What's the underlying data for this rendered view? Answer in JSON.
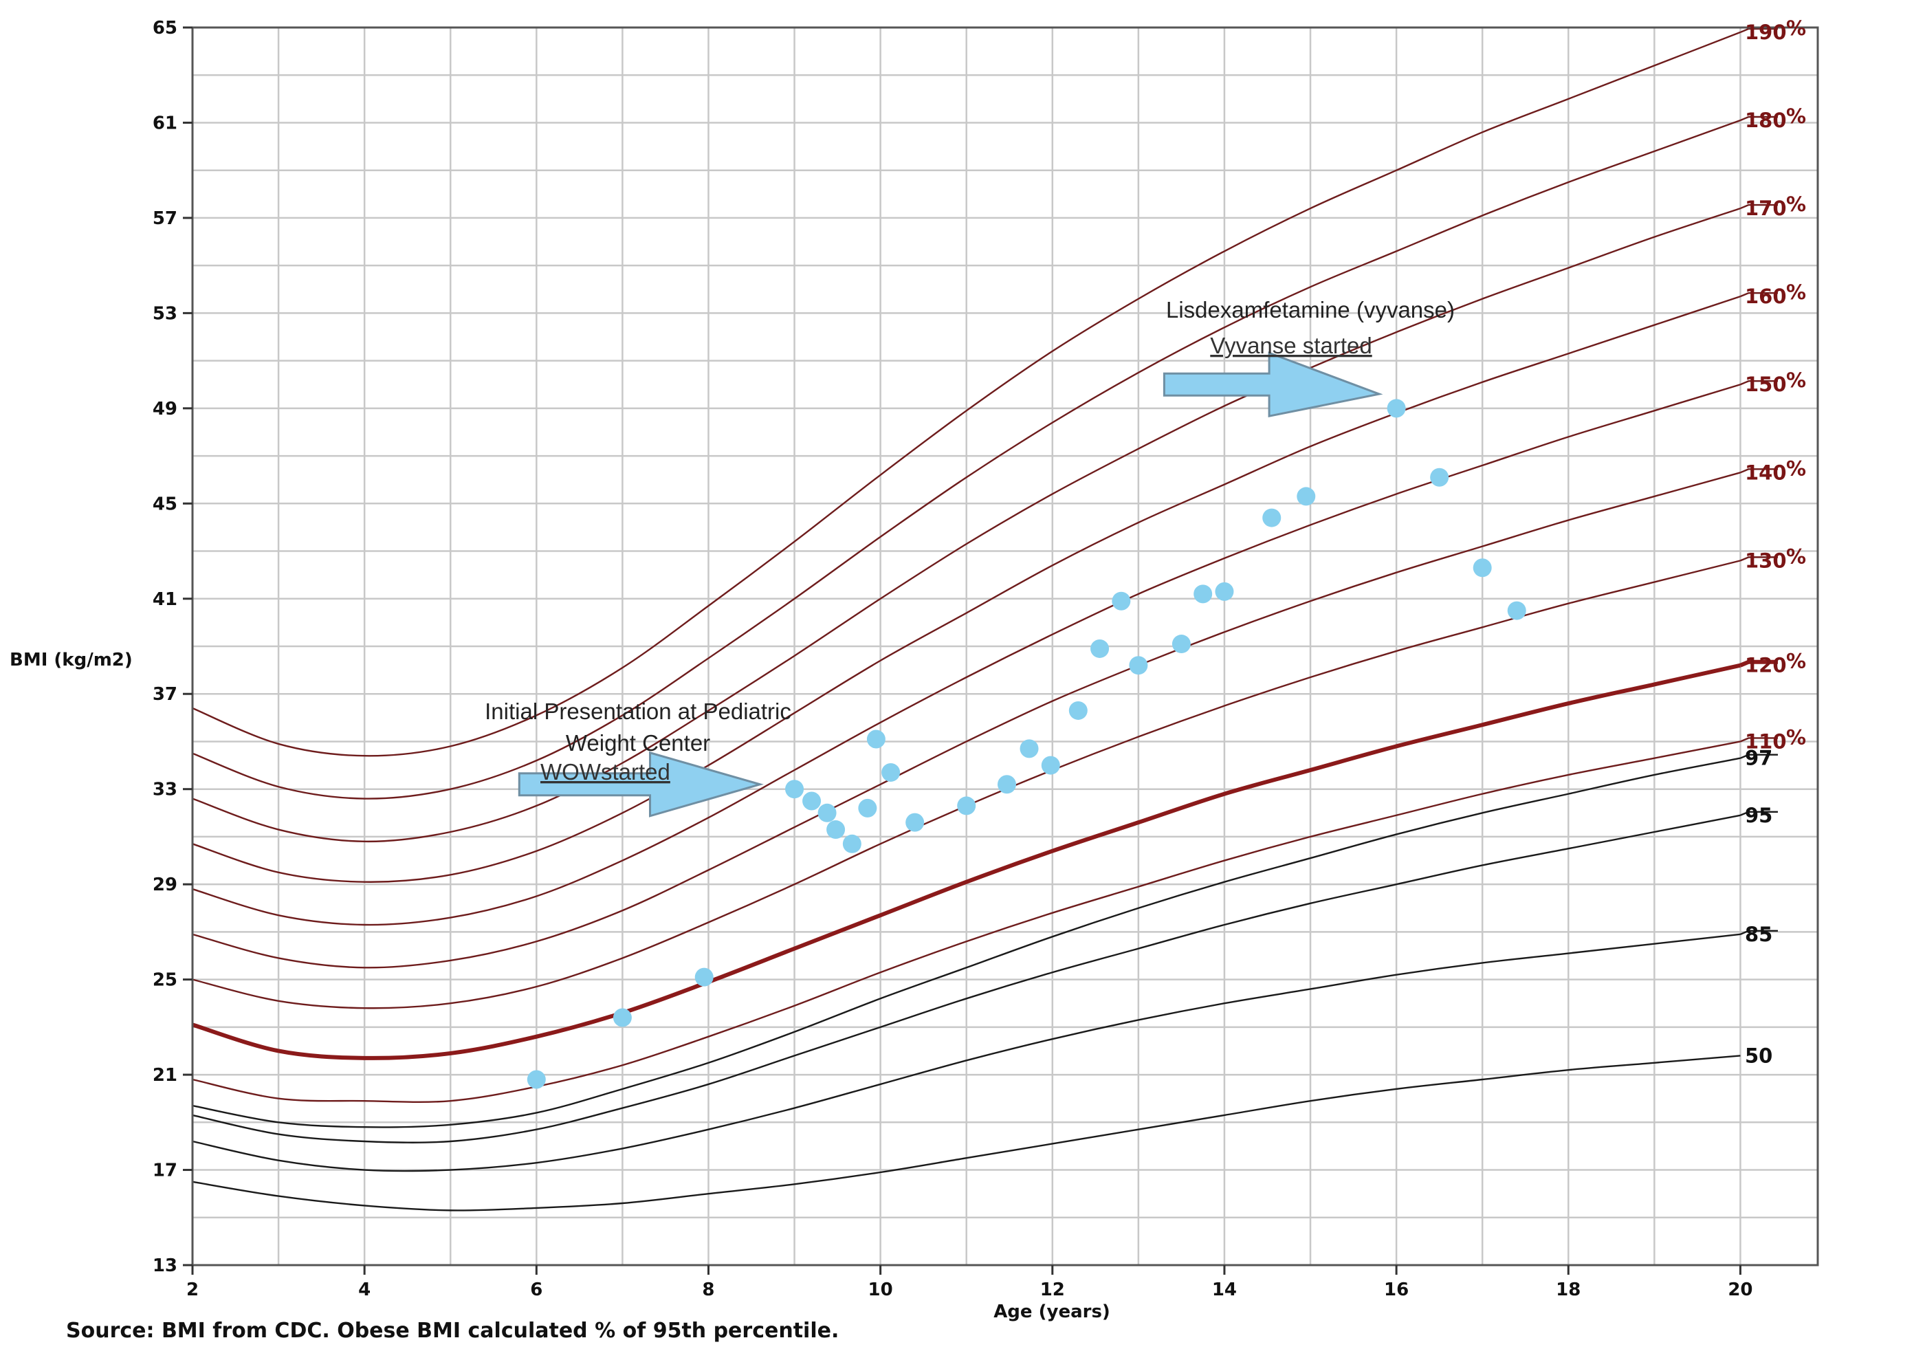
{
  "chart_data": {
    "type": "line",
    "xlabel": "Age (years)",
    "ylabel": "BMI (kg/m2)",
    "source_note": "Source: BMI from CDC. Obese BMI calculated % of 95th percentile.",
    "xlim": [
      2,
      20
    ],
    "ylim": [
      13,
      65
    ],
    "x_ticks": [
      "2",
      "4",
      "6",
      "8",
      "10",
      "12",
      "14",
      "16",
      "18",
      "20"
    ],
    "y_ticks": [
      "13",
      "17",
      "21",
      "25",
      "29",
      "33",
      "37",
      "41",
      "45",
      "49",
      "53",
      "57",
      "61",
      "65"
    ],
    "grid": true,
    "colors": {
      "percentile": "#1a1a1a",
      "obese": "#6e1c1c",
      "reference_120": "#8b1a1a",
      "points": "#86cfee",
      "arrow": "#8fd0f0"
    },
    "series": [
      {
        "name": "50",
        "kind": "percentile",
        "x": [
          2,
          3,
          4,
          5,
          6,
          7,
          8,
          9,
          10,
          11,
          12,
          13,
          14,
          15,
          16,
          17,
          18,
          19,
          20
        ],
        "values": [
          16.5,
          15.9,
          15.5,
          15.3,
          15.4,
          15.6,
          16.0,
          16.4,
          16.9,
          17.5,
          18.1,
          18.7,
          19.3,
          19.9,
          20.4,
          20.8,
          21.2,
          21.5,
          21.8
        ]
      },
      {
        "name": "85",
        "kind": "percentile",
        "x": [
          2,
          3,
          4,
          5,
          6,
          7,
          8,
          9,
          10,
          11,
          12,
          13,
          14,
          15,
          16,
          17,
          18,
          19,
          20
        ],
        "values": [
          18.2,
          17.4,
          17.0,
          17.0,
          17.3,
          17.9,
          18.7,
          19.6,
          20.6,
          21.6,
          22.5,
          23.3,
          24.0,
          24.6,
          25.2,
          25.7,
          26.1,
          26.5,
          26.9
        ]
      },
      {
        "name": "95",
        "kind": "percentile",
        "x": [
          2,
          3,
          4,
          5,
          6,
          7,
          8,
          9,
          10,
          11,
          12,
          13,
          14,
          15,
          16,
          17,
          18,
          19,
          20
        ],
        "values": [
          19.3,
          18.5,
          18.2,
          18.2,
          18.7,
          19.6,
          20.6,
          21.8,
          23.0,
          24.2,
          25.3,
          26.3,
          27.3,
          28.2,
          29.0,
          29.8,
          30.5,
          31.2,
          31.9
        ]
      },
      {
        "name": "97",
        "kind": "percentile",
        "x": [
          2,
          3,
          4,
          5,
          6,
          7,
          8,
          9,
          10,
          11,
          12,
          13,
          14,
          15,
          16,
          17,
          18,
          19,
          20
        ],
        "values": [
          19.7,
          19.0,
          18.8,
          18.9,
          19.4,
          20.4,
          21.5,
          22.8,
          24.2,
          25.5,
          26.8,
          28.0,
          29.1,
          30.1,
          31.1,
          32.0,
          32.8,
          33.6,
          34.3
        ]
      },
      {
        "name": "110",
        "kind": "obese",
        "x": [
          2,
          3,
          4,
          5,
          6,
          7,
          8,
          9,
          10,
          11,
          12,
          13,
          14,
          15,
          16,
          17,
          18,
          19,
          20
        ],
        "values": [
          20.8,
          20.0,
          19.9,
          19.9,
          20.5,
          21.4,
          22.6,
          23.9,
          25.3,
          26.6,
          27.8,
          28.9,
          30.0,
          31.0,
          31.9,
          32.8,
          33.6,
          34.3,
          35.0
        ]
      },
      {
        "name": "120",
        "kind": "reference",
        "x": [
          2,
          3,
          4,
          5,
          6,
          7,
          8,
          9,
          10,
          11,
          12,
          13,
          14,
          15,
          16,
          17,
          18,
          19,
          20
        ],
        "values": [
          23.1,
          22.0,
          21.7,
          21.9,
          22.6,
          23.6,
          24.9,
          26.3,
          27.7,
          29.1,
          30.4,
          31.6,
          32.8,
          33.8,
          34.8,
          35.7,
          36.6,
          37.4,
          38.2
        ]
      },
      {
        "name": "130",
        "kind": "obese",
        "x": [
          2,
          3,
          4,
          5,
          6,
          7,
          8,
          9,
          10,
          11,
          12,
          13,
          14,
          15,
          16,
          17,
          18,
          19,
          20
        ],
        "values": [
          25.0,
          24.1,
          23.8,
          24.0,
          24.7,
          25.9,
          27.4,
          29.0,
          30.7,
          32.3,
          33.8,
          35.2,
          36.5,
          37.7,
          38.8,
          39.8,
          40.8,
          41.7,
          42.6
        ]
      },
      {
        "name": "140",
        "kind": "obese",
        "x": [
          2,
          3,
          4,
          5,
          6,
          7,
          8,
          9,
          10,
          11,
          12,
          13,
          14,
          15,
          16,
          17,
          18,
          19,
          20
        ],
        "values": [
          26.9,
          25.9,
          25.5,
          25.8,
          26.6,
          27.9,
          29.6,
          31.4,
          33.2,
          35.0,
          36.7,
          38.2,
          39.6,
          40.9,
          42.1,
          43.2,
          44.3,
          45.3,
          46.3
        ]
      },
      {
        "name": "150",
        "kind": "obese",
        "x": [
          2,
          3,
          4,
          5,
          6,
          7,
          8,
          9,
          10,
          11,
          12,
          13,
          14,
          15,
          16,
          17,
          18,
          19,
          20
        ],
        "values": [
          28.8,
          27.7,
          27.3,
          27.6,
          28.5,
          30.0,
          31.8,
          33.8,
          35.8,
          37.7,
          39.5,
          41.2,
          42.7,
          44.1,
          45.4,
          46.6,
          47.8,
          48.9,
          50.0
        ]
      },
      {
        "name": "160",
        "kind": "obese",
        "x": [
          2,
          3,
          4,
          5,
          6,
          7,
          8,
          9,
          10,
          11,
          12,
          13,
          14,
          15,
          16,
          17,
          18,
          19,
          20
        ],
        "values": [
          30.7,
          29.5,
          29.1,
          29.4,
          30.4,
          32.0,
          34.0,
          36.2,
          38.4,
          40.4,
          42.4,
          44.2,
          45.8,
          47.4,
          48.8,
          50.1,
          51.3,
          52.5,
          53.7
        ]
      },
      {
        "name": "170",
        "kind": "obese",
        "x": [
          2,
          3,
          4,
          5,
          6,
          7,
          8,
          9,
          10,
          11,
          12,
          13,
          14,
          15,
          16,
          17,
          18,
          19,
          20
        ],
        "values": [
          32.6,
          31.3,
          30.8,
          31.2,
          32.3,
          34.1,
          36.3,
          38.6,
          41.0,
          43.3,
          45.4,
          47.3,
          49.1,
          50.7,
          52.2,
          53.6,
          54.9,
          56.2,
          57.4
        ]
      },
      {
        "name": "180",
        "kind": "obese",
        "x": [
          2,
          3,
          4,
          5,
          6,
          7,
          8,
          9,
          10,
          11,
          12,
          13,
          14,
          15,
          16,
          17,
          18,
          19,
          20
        ],
        "values": [
          34.5,
          33.1,
          32.6,
          33.0,
          34.2,
          36.1,
          38.5,
          41.0,
          43.6,
          46.1,
          48.4,
          50.5,
          52.4,
          54.1,
          55.6,
          57.1,
          58.5,
          59.8,
          61.1
        ]
      },
      {
        "name": "190",
        "kind": "obese",
        "x": [
          2,
          3,
          4,
          5,
          6,
          7,
          8,
          9,
          10,
          11,
          12,
          13,
          14,
          15,
          16,
          17,
          18,
          19,
          20
        ],
        "values": [
          36.4,
          34.9,
          34.4,
          34.8,
          36.1,
          38.1,
          40.7,
          43.4,
          46.2,
          48.9,
          51.4,
          53.6,
          55.6,
          57.4,
          59.0,
          60.6,
          62.0,
          63.4,
          64.8
        ]
      }
    ],
    "curve_labels": [
      {
        "series": "190",
        "text": "190",
        "pct": "%"
      },
      {
        "series": "180",
        "text": "180",
        "pct": "%"
      },
      {
        "series": "170",
        "text": "170",
        "pct": "%"
      },
      {
        "series": "160",
        "text": "160",
        "pct": "%"
      },
      {
        "series": "150",
        "text": "150",
        "pct": "%"
      },
      {
        "series": "140",
        "text": "140",
        "pct": "%"
      },
      {
        "series": "130",
        "text": "130",
        "pct": "%"
      },
      {
        "series": "120",
        "text": "120",
        "pct": "%"
      },
      {
        "series": "110",
        "text": "110",
        "pct": "%"
      },
      {
        "series": "97",
        "text": "97",
        "pct": ""
      },
      {
        "series": "95",
        "text": "95",
        "pct": ""
      },
      {
        "series": "85",
        "text": "85",
        "pct": ""
      },
      {
        "series": "50",
        "text": "50",
        "pct": ""
      }
    ],
    "points": [
      {
        "x": 6.0,
        "y": 20.8
      },
      {
        "x": 7.0,
        "y": 23.4
      },
      {
        "x": 7.95,
        "y": 25.1
      },
      {
        "x": 9.0,
        "y": 33.0
      },
      {
        "x": 9.2,
        "y": 32.5
      },
      {
        "x": 9.38,
        "y": 32.0
      },
      {
        "x": 9.48,
        "y": 31.3
      },
      {
        "x": 9.67,
        "y": 30.7
      },
      {
        "x": 9.85,
        "y": 32.2
      },
      {
        "x": 9.95,
        "y": 35.1
      },
      {
        "x": 10.12,
        "y": 33.7
      },
      {
        "x": 10.4,
        "y": 31.6
      },
      {
        "x": 11.0,
        "y": 32.3
      },
      {
        "x": 11.47,
        "y": 33.2
      },
      {
        "x": 11.73,
        "y": 34.7
      },
      {
        "x": 11.98,
        "y": 34.0
      },
      {
        "x": 12.3,
        "y": 36.3
      },
      {
        "x": 12.55,
        "y": 38.9
      },
      {
        "x": 12.8,
        "y": 40.9
      },
      {
        "x": 13.0,
        "y": 38.2
      },
      {
        "x": 13.5,
        "y": 39.1
      },
      {
        "x": 13.75,
        "y": 41.2
      },
      {
        "x": 14.0,
        "y": 41.3
      },
      {
        "x": 14.55,
        "y": 44.4
      },
      {
        "x": 14.95,
        "y": 45.3
      },
      {
        "x": 16.0,
        "y": 49.0
      },
      {
        "x": 16.5,
        "y": 46.1
      },
      {
        "x": 17.0,
        "y": 42.3
      },
      {
        "x": 17.4,
        "y": 40.5
      }
    ],
    "annotations": [
      {
        "lines": [
          "Initial Presentation at Pediatric",
          "Weight Center"
        ],
        "underlined": "WOWstarted",
        "arrow_from": [
          5.8,
          33.2
        ],
        "arrow_to": [
          8.6,
          33.2
        ]
      },
      {
        "lines": [
          "Lisdexamfetamine (vyvanse)"
        ],
        "underlined": "Vyvanse started",
        "arrow_from": [
          13.3,
          50.0
        ],
        "arrow_to": [
          15.8,
          49.6
        ]
      }
    ]
  }
}
